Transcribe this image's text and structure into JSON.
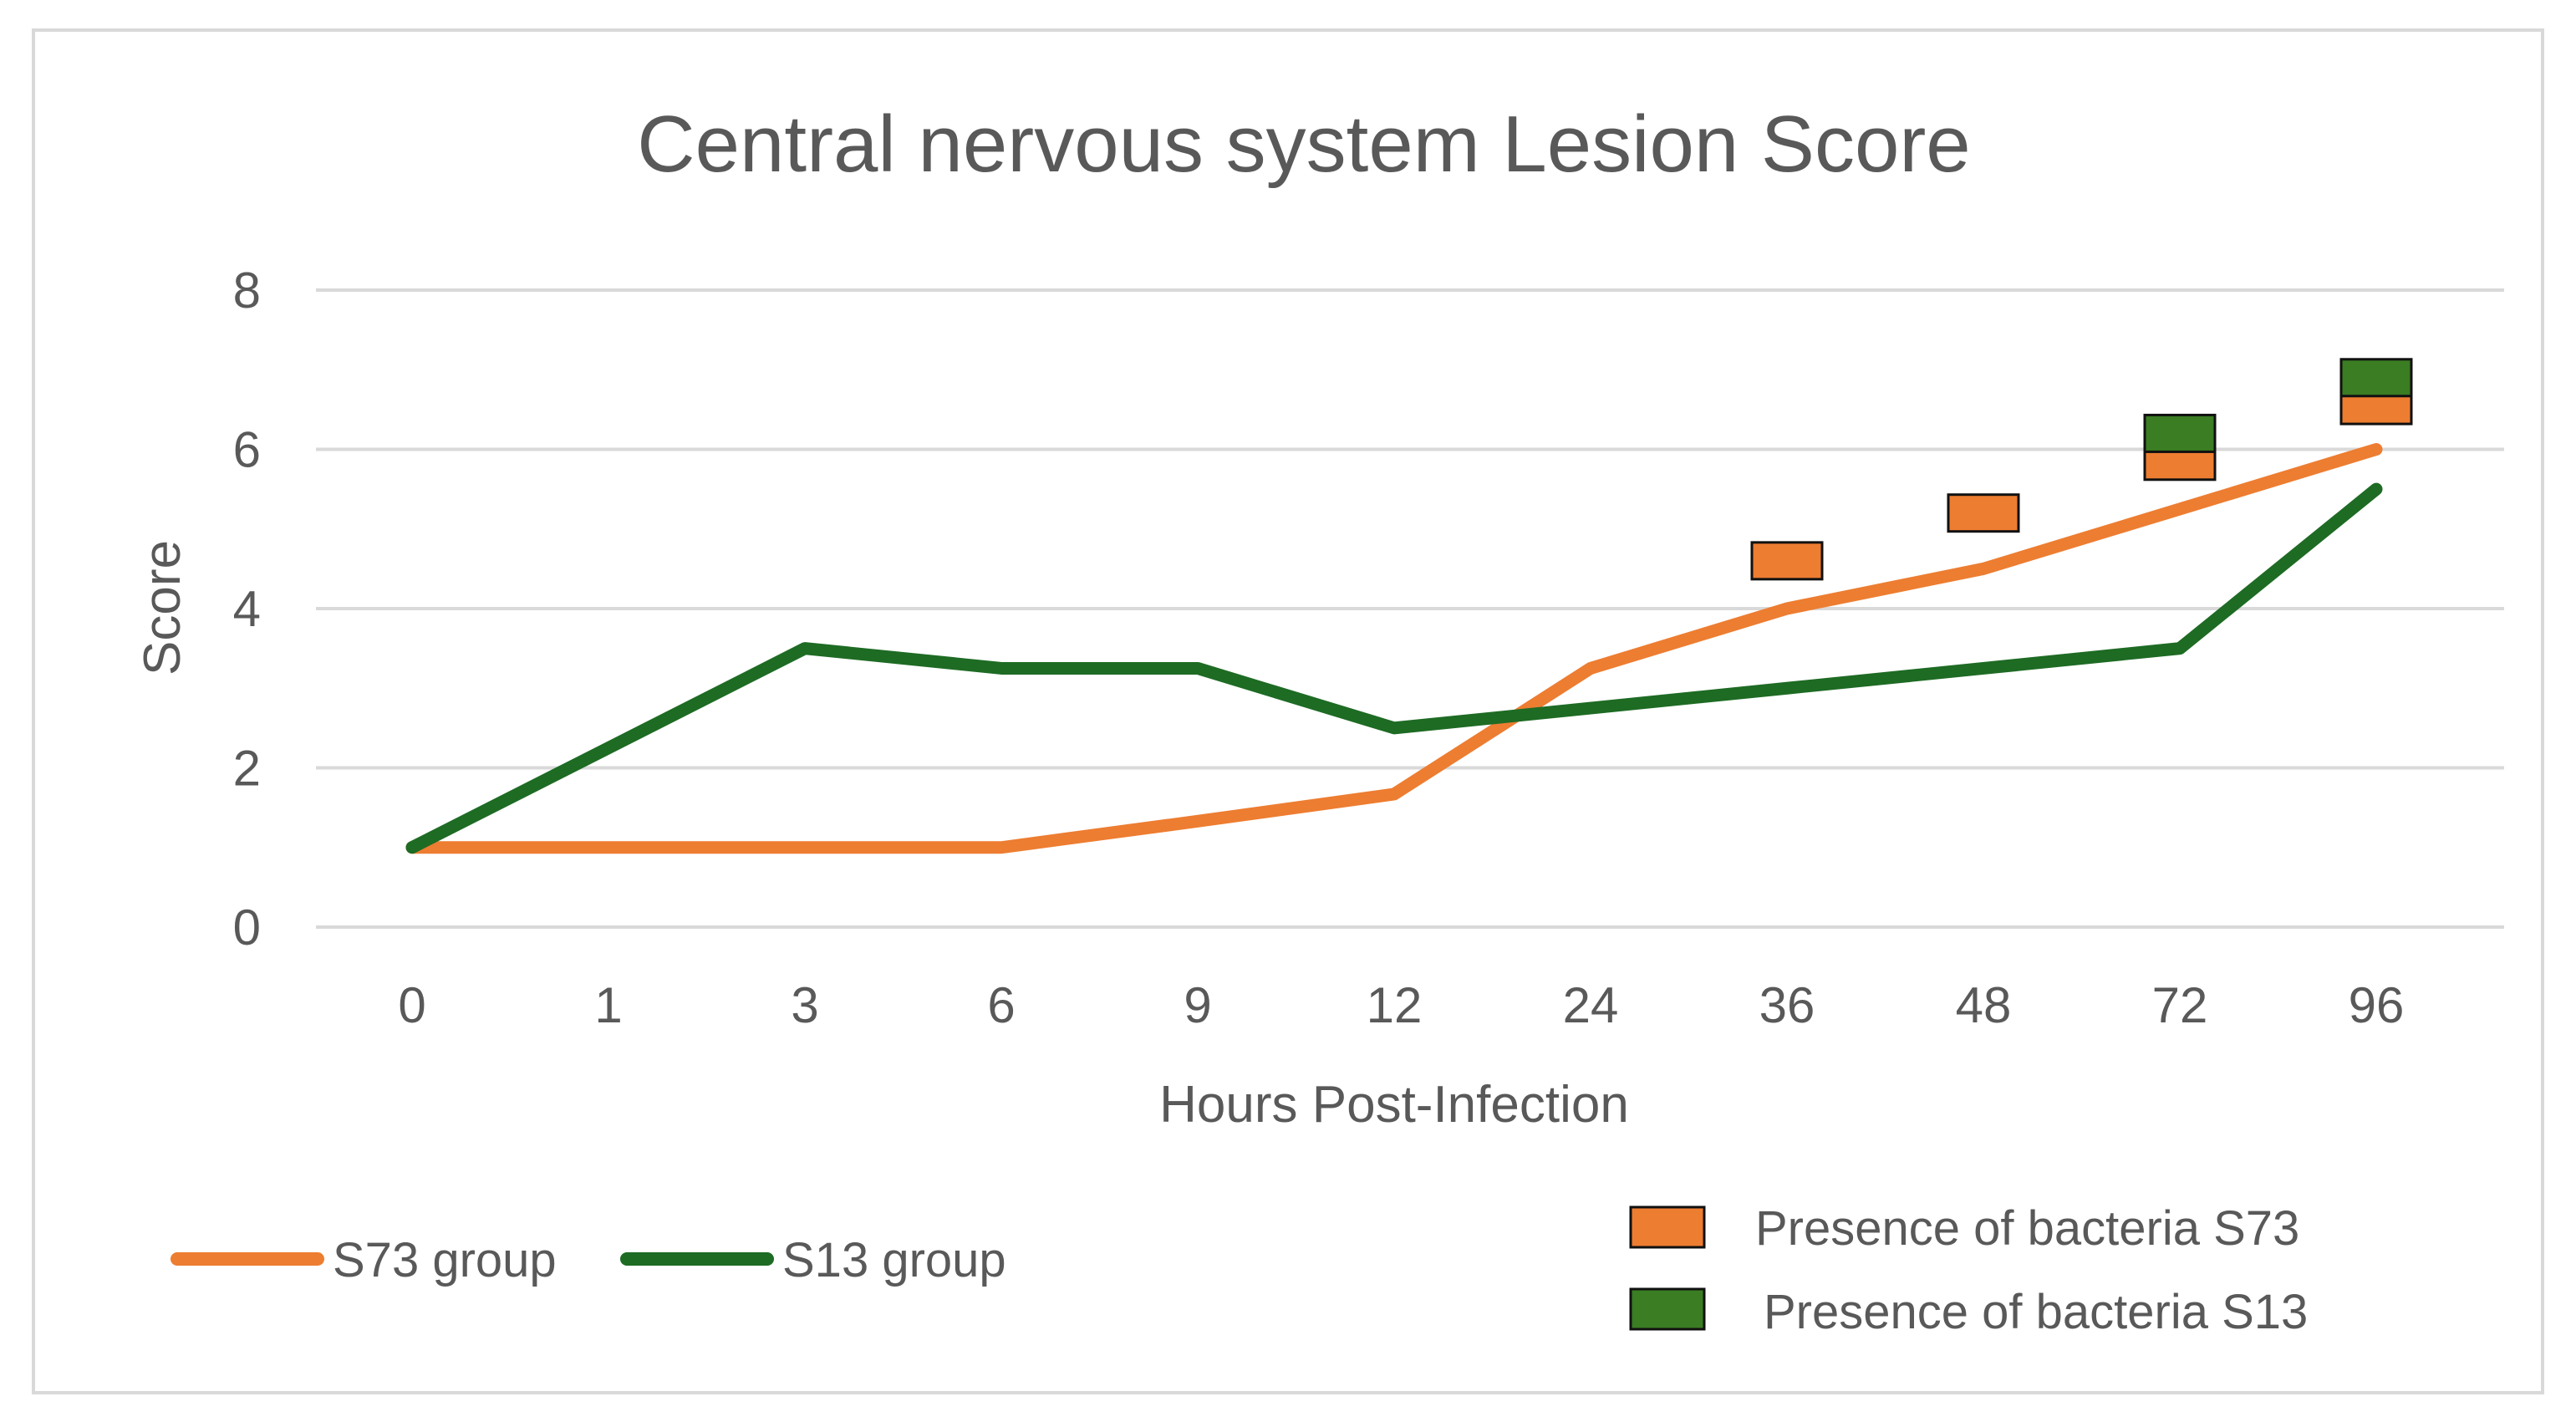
{
  "chart_data": {
    "type": "line",
    "title": "Central nervous system  Lesion Score",
    "xlabel": "Hours Post-Infection",
    "ylabel": "Score",
    "categories": [
      "0",
      "1",
      "3",
      "6",
      "9",
      "12",
      "24",
      "36",
      "48",
      "72",
      "96"
    ],
    "ylim": [
      0,
      8
    ],
    "yticks": [
      0,
      2,
      4,
      6,
      8
    ],
    "grid": true,
    "legend_position": "bottom",
    "series": [
      {
        "name": "S73 group",
        "color": "#ED7D31",
        "values": [
          1,
          1,
          1,
          1,
          1.33,
          1.67,
          3.25,
          4.0,
          4.5,
          5.25,
          6.0
        ]
      },
      {
        "name": "S13 group",
        "color": "#1E6B24",
        "values": [
          1,
          2.25,
          3.5,
          3.25,
          3.25,
          2.5,
          2.75,
          3.0,
          3.25,
          3.5,
          5.5
        ]
      }
    ],
    "markers": [
      {
        "name": "Presence of bacteria S73",
        "color": "#ED7D31",
        "points": [
          {
            "x": "36",
            "y": 4.6
          },
          {
            "x": "48",
            "y": 5.2
          },
          {
            "x": "72",
            "y": 5.85
          },
          {
            "x": "96",
            "y": 6.55
          }
        ]
      },
      {
        "name": "Presence of bacteria S13",
        "color": "#3A7D22",
        "points": [
          {
            "x": "72",
            "y": 6.2
          },
          {
            "x": "96",
            "y": 6.9
          }
        ]
      }
    ]
  }
}
